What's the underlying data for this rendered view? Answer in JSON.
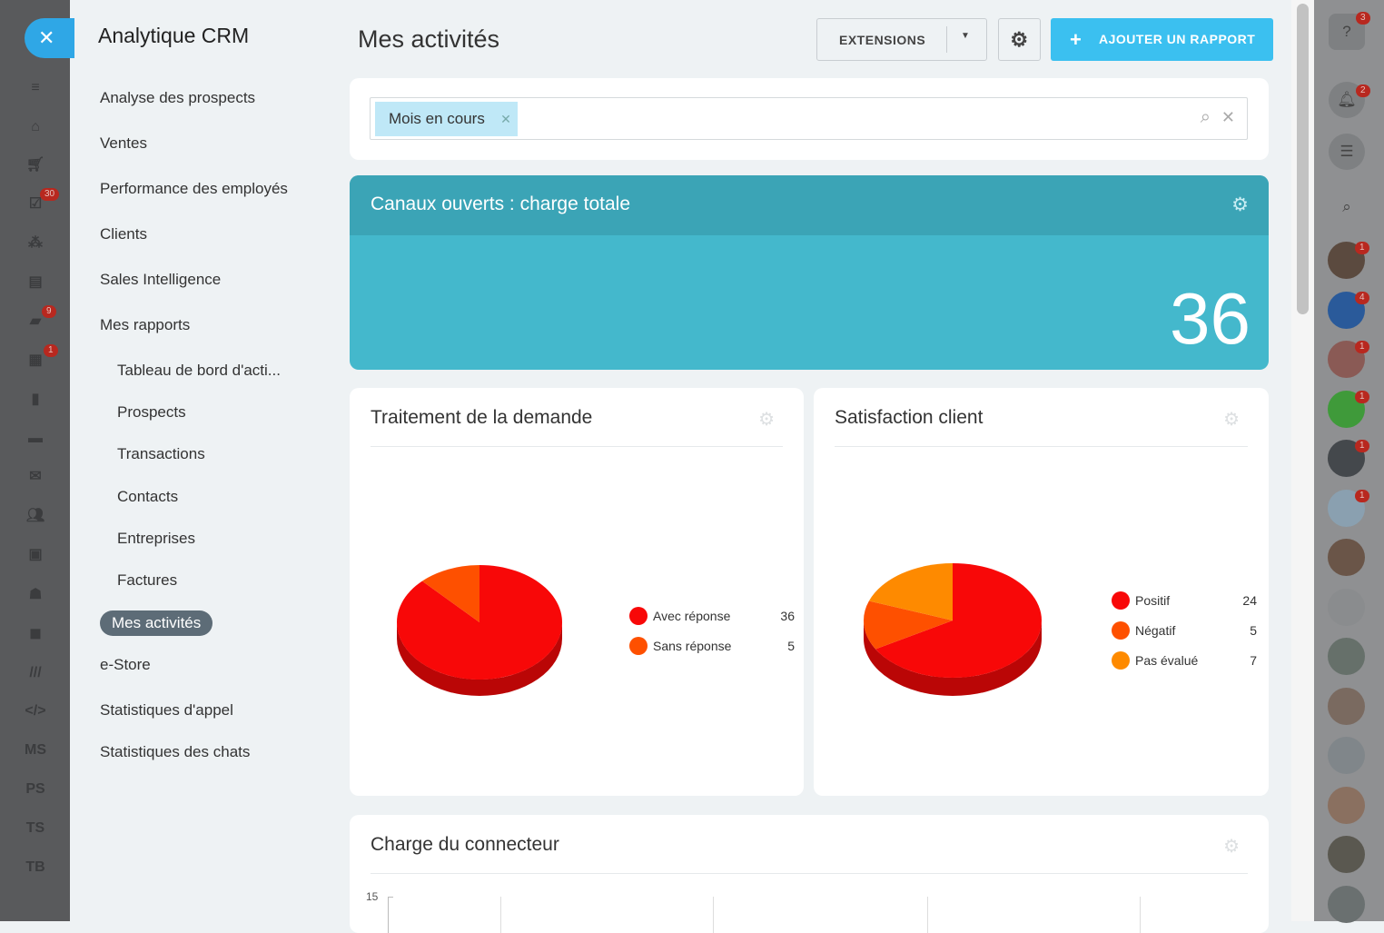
{
  "leftbar": {
    "badges": {
      "tasks": "30",
      "chat": "9",
      "calendar": "1"
    },
    "labels": [
      "MS",
      "PS",
      "TS",
      "TB"
    ]
  },
  "menu": {
    "title": "Analytique CRM",
    "items": [
      {
        "label": "Analyse des prospects",
        "sub": false
      },
      {
        "label": "Ventes",
        "sub": false
      },
      {
        "label": "Performance des employés",
        "sub": false
      },
      {
        "label": "Clients",
        "sub": false
      },
      {
        "label": "Sales Intelligence",
        "sub": false
      },
      {
        "label": "Mes rapports",
        "sub": false
      },
      {
        "label": "Tableau de bord d'acti...",
        "sub": true
      },
      {
        "label": "Prospects",
        "sub": true
      },
      {
        "label": "Transactions",
        "sub": true
      },
      {
        "label": "Contacts",
        "sub": true
      },
      {
        "label": "Entreprises",
        "sub": true
      },
      {
        "label": "Factures",
        "sub": true
      },
      {
        "label": "Mes activités",
        "sub": false,
        "active": true
      },
      {
        "label": "e-Store",
        "sub": false
      },
      {
        "label": "Statistiques d'appel",
        "sub": false
      },
      {
        "label": "Statistiques des chats",
        "sub": false
      }
    ]
  },
  "header": {
    "title": "Mes activités",
    "extensions": "EXTENSIONS",
    "add_report": "AJOUTER UN RAPPORT"
  },
  "filter": {
    "chip": "Mois en cours"
  },
  "kpi": {
    "title": "Canaux ouverts : charge totale",
    "value": "36"
  },
  "chart_data": [
    {
      "type": "pie",
      "title": "Traitement de la demande",
      "labels": [
        "Avec réponse",
        "Sans réponse"
      ],
      "values": [
        36,
        5
      ],
      "colors": [
        "#f80808",
        "#fe5000"
      ]
    },
    {
      "type": "pie",
      "title": "Satisfaction client",
      "labels": [
        "Positif",
        "Négatif",
        "Pas évalué"
      ],
      "values": [
        24,
        5,
        7
      ],
      "colors": [
        "#f80808",
        "#fe5000",
        "#fe8a00"
      ]
    },
    {
      "type": "bar",
      "title": "Charge du connecteur",
      "y_ticks": [
        "15"
      ]
    }
  ],
  "rightbar": {
    "badges": {
      "help": "3",
      "notifications": "2"
    },
    "avatar_badges": [
      "1",
      "4",
      "1",
      "1",
      "1",
      "1"
    ]
  }
}
